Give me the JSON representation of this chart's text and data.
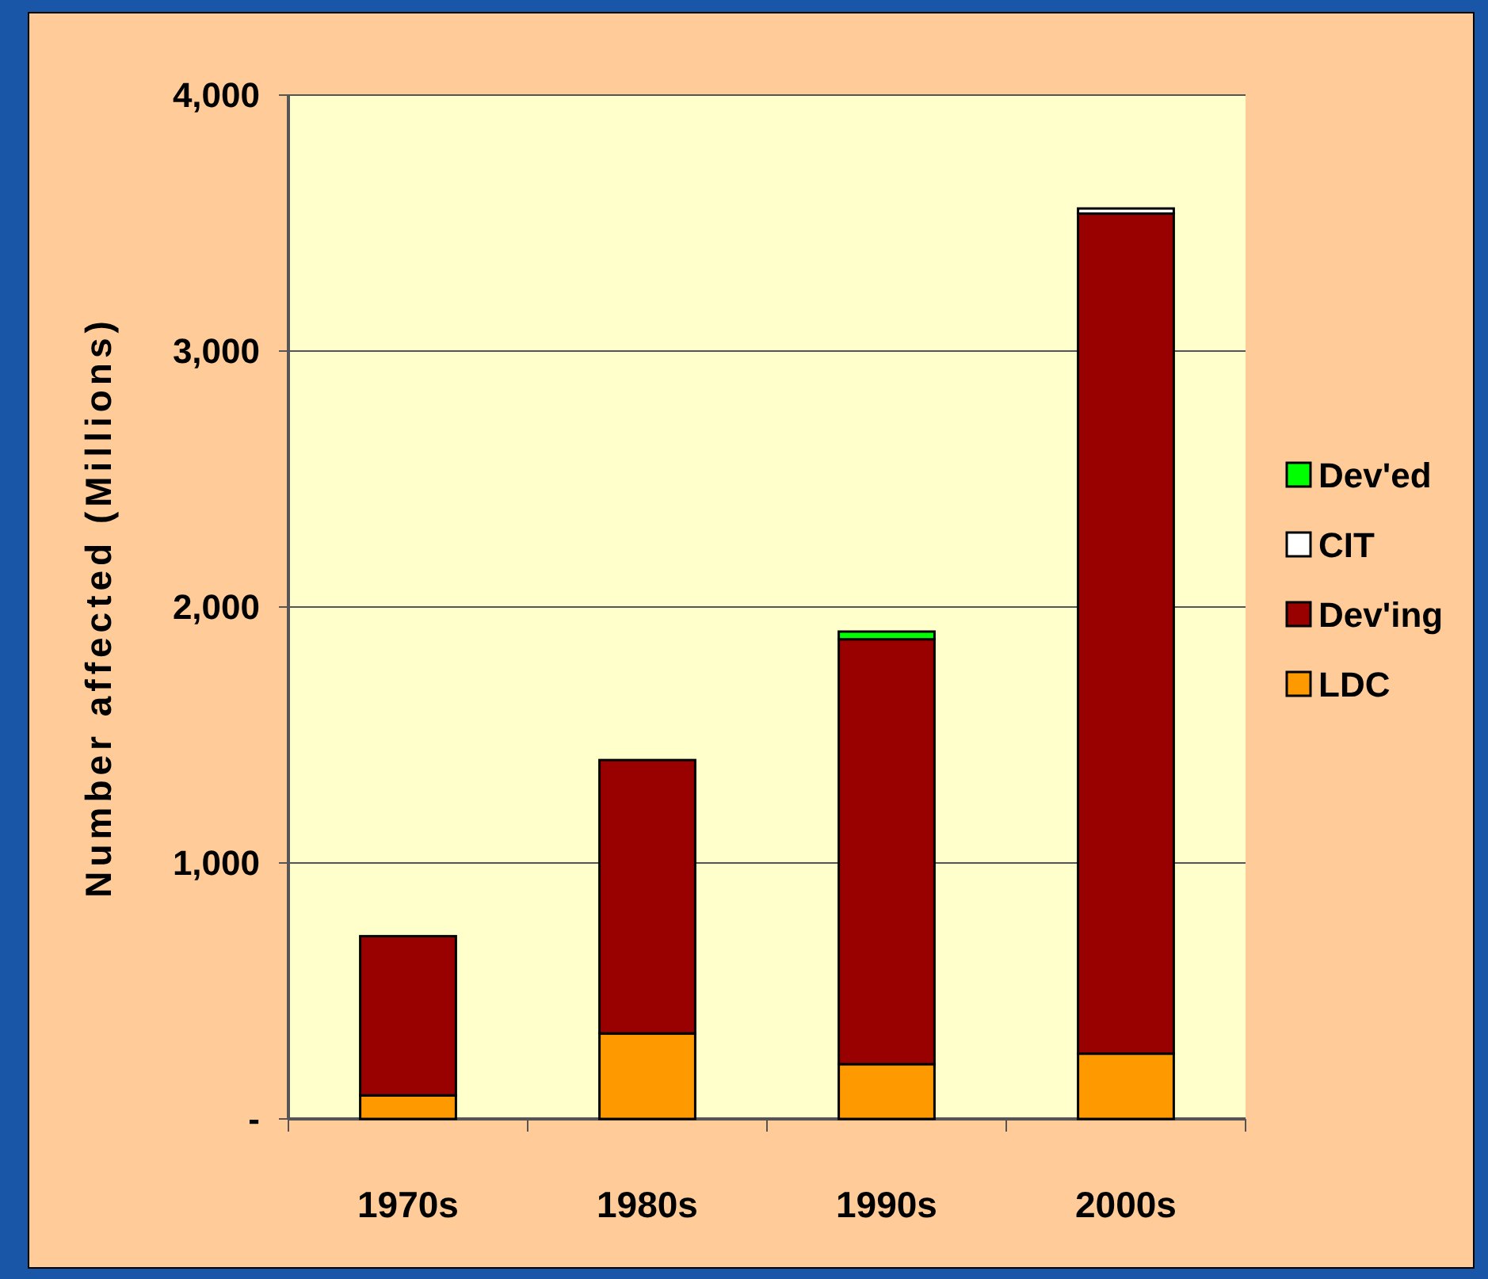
{
  "chart_data": {
    "type": "bar",
    "stacked": true,
    "ylabel": "Number affected (Millions)",
    "categories": [
      "1970s",
      "1980s",
      "1990s",
      "2000s"
    ],
    "series": [
      {
        "name": "LDC",
        "color": "#ff9900",
        "values": [
          92,
          334,
          214,
          255
        ]
      },
      {
        "name": "Dev'ing",
        "color": "#990000",
        "values": [
          622,
          1068,
          1660,
          3282
        ]
      },
      {
        "name": "CIT",
        "color": "#ffffff",
        "values": [
          null,
          null,
          null,
          20
        ]
      },
      {
        "name": "Dev'ed",
        "color": "#00ff00",
        "values": [
          null,
          null,
          30,
          null
        ]
      }
    ],
    "ylim": [
      0,
      4000
    ],
    "yticks": [
      {
        "value": 0,
        "label": "-"
      },
      {
        "value": 1000,
        "label": "1,000"
      },
      {
        "value": 2000,
        "label": "2,000"
      },
      {
        "value": 3000,
        "label": "3,000"
      },
      {
        "value": 4000,
        "label": "4,000"
      }
    ],
    "grid": "y",
    "legend": "right"
  }
}
